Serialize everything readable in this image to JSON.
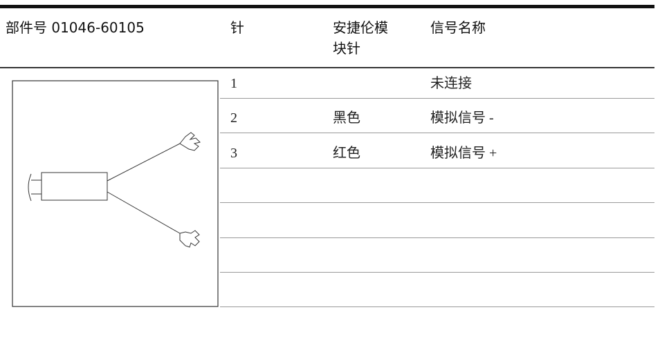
{
  "header": {
    "part_number": "部件号 01046-60105",
    "pin": "针",
    "module_pin": "安捷伦模块针",
    "signal_name": "信号名称"
  },
  "rows": [
    {
      "pin": "1",
      "signal": "未连接"
    },
    {
      "pin": "2",
      "module_pin": "黑色",
      "signal": "模拟信号 -"
    },
    {
      "pin": "3",
      "module_pin": "红色",
      "signal": "模拟信号 +"
    }
  ]
}
